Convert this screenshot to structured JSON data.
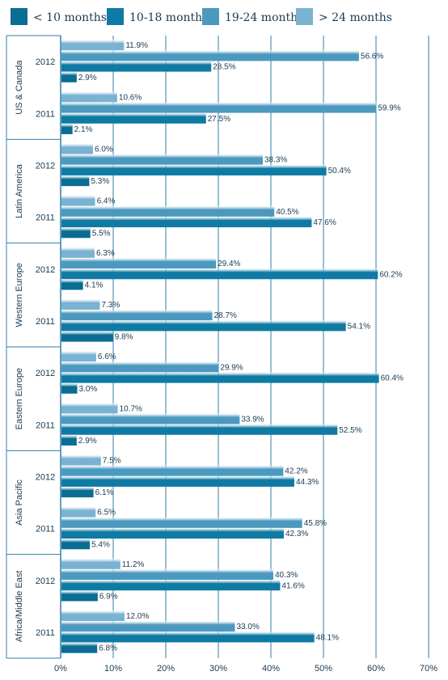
{
  "colors": {
    "lt10": "#0a6d93",
    "m10_18": "#0f7aa3",
    "m19_24": "#4c99bf",
    "gt24": "#7ab2d2",
    "grid": "#2f7faa",
    "text": "#1b3a52"
  },
  "chart_data": {
    "type": "bar",
    "orientation": "horizontal",
    "legend_position": "top",
    "series": [
      {
        "name": "< 10 months",
        "color_key": "lt10"
      },
      {
        "name": "10-18 months",
        "color_key": "m10_18"
      },
      {
        "name": "19-24 months",
        "color_key": "m19_24"
      },
      {
        "name": "> 24 months",
        "color_key": "gt24"
      }
    ],
    "bar_order_top_to_bottom": [
      "> 24 months",
      "19-24 months",
      "10-18 months",
      "< 10 months"
    ],
    "groups": [
      {
        "region": "US & Canada",
        "years": [
          {
            "year": "2012",
            "values": {
              "> 24 months": 11.9,
              "19-24 months": 56.6,
              "10-18 months": 28.5,
              "< 10 months": 2.9
            },
            "labels": {
              "> 24 months": "11.9%",
              "19-24 months": "56.6%",
              "10-18 months": "28.5%",
              "< 10 months": "2.9%"
            }
          },
          {
            "year": "2011",
            "values": {
              "> 24 months": 10.6,
              "19-24 months": 59.9,
              "10-18 months": 27.5,
              "< 10 months": 2.1
            },
            "labels": {
              "> 24 months": "10.6%",
              "19-24 months": "59.9%",
              "10-18 months": "27.5%",
              "< 10 months": "2.1%"
            }
          }
        ]
      },
      {
        "region": "Latin America",
        "years": [
          {
            "year": "2012",
            "values": {
              "> 24 months": 6.0,
              "19-24 months": 38.3,
              "10-18 months": 50.4,
              "< 10 months": 5.3
            },
            "labels": {
              "> 24 months": "6.0%",
              "19-24 months": "38.3%",
              "10-18 months": "50.4%",
              "< 10 months": "5.3%"
            }
          },
          {
            "year": "2011",
            "values": {
              "> 24 months": 6.4,
              "19-24 months": 40.5,
              "10-18 months": 47.6,
              "< 10 months": 5.5
            },
            "labels": {
              "> 24 months": "6.4%",
              "19-24 months": "40.5%",
              "10-18 months": "47.6%",
              "< 10 months": "5.5%"
            }
          }
        ]
      },
      {
        "region": "Western Europe",
        "years": [
          {
            "year": "2012",
            "values": {
              "> 24 months": 6.3,
              "19-24 months": 29.4,
              "10-18 months": 60.2,
              "< 10 months": 4.1
            },
            "labels": {
              "> 24 months": "6.3%",
              "19-24 months": "29.4%",
              "10-18 months": "60.2%",
              "< 10 months": "4.1%"
            }
          },
          {
            "year": "2011",
            "values": {
              "> 24 months": 7.3,
              "19-24 months": 28.7,
              "10-18 months": 54.1,
              "< 10 months": 9.8
            },
            "labels": {
              "> 24 months": "7.3%",
              "19-24 months": "28.7%",
              "10-18 months": "54.1%",
              "< 10 months": "9.8%"
            }
          }
        ]
      },
      {
        "region": "Eastern Europe",
        "years": [
          {
            "year": "2012",
            "values": {
              "> 24 months": 6.6,
              "19-24 months": 29.9,
              "10-18 months": 60.4,
              "< 10 months": 3.0
            },
            "labels": {
              "> 24 months": "6.6%",
              "19-24 months": "29.9%",
              "10-18 months": "60.4%",
              "< 10 months": "3.0%"
            }
          },
          {
            "year": "2011",
            "values": {
              "> 24 months": 10.7,
              "19-24 months": 33.9,
              "10-18 months": 52.5,
              "< 10 months": 2.9
            },
            "labels": {
              "> 24 months": "10.7%",
              "19-24 months": "33.9%",
              "10-18 months": "52.5%",
              "< 10 months": "2.9%"
            }
          }
        ]
      },
      {
        "region": "Asia Pacific",
        "years": [
          {
            "year": "2012",
            "values": {
              "> 24 months": 7.5,
              "19-24 months": 42.2,
              "10-18 months": 44.3,
              "< 10 months": 6.1
            },
            "labels": {
              "> 24 months": "7.5%",
              "19-24 months": "42.2%",
              "10-18 months": "44.3%",
              "< 10 months": "6.1%"
            }
          },
          {
            "year": "2011",
            "values": {
              "> 24 months": 6.5,
              "19-24 months": 45.8,
              "10-18 months": 42.3,
              "< 10 months": 5.4
            },
            "labels": {
              "> 24 months": "6.5%",
              "19-24 months": "45.8%",
              "10-18 months": "42.3%",
              "< 10 months": "5.4%"
            }
          }
        ]
      },
      {
        "region": "Africa/Middle East",
        "years": [
          {
            "year": "2012",
            "values": {
              "> 24 months": 11.2,
              "19-24 months": 40.3,
              "10-18 months": 41.6,
              "< 10 months": 6.9
            },
            "labels": {
              "> 24 months": "11.2%",
              "19-24 months": "40.3%",
              "10-18 months": "41.6%",
              "< 10 months": "6.9%"
            }
          },
          {
            "year": "2011",
            "values": {
              "> 24 months": 12.0,
              "19-24 months": 33.0,
              "10-18 months": 48.1,
              "< 10 months": 6.8
            },
            "labels": {
              "> 24 months": "12.0%",
              "19-24 months": "33.0%",
              "10-18 months": "48.1%",
              "< 10 months": "6.8%"
            }
          }
        ]
      }
    ],
    "x_axis": {
      "min": 0,
      "max": 70,
      "ticks": [
        0,
        10,
        20,
        30,
        40,
        50,
        60,
        70
      ],
      "tick_labels": [
        "0%",
        "10%",
        "20%",
        "30%",
        "40%",
        "50%",
        "60%",
        "70%"
      ],
      "grid": true
    }
  }
}
